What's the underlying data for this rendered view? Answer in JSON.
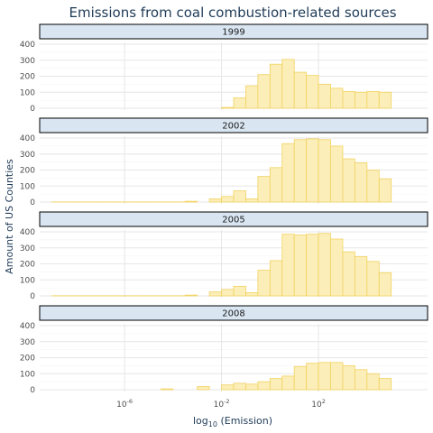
{
  "chart_data": {
    "type": "bar",
    "title": "Emissions from coal combustion-related sources",
    "xlabel": "log10 (Emission)",
    "ylabel": "Amount of US Counties",
    "x_scale": "log10",
    "x_ticks": [
      {
        "value": -6,
        "label_base": "10",
        "label_exp": "-6"
      },
      {
        "value": -2,
        "label_base": "10",
        "label_exp": "-2"
      },
      {
        "value": 2,
        "label_base": "10",
        "label_exp": "2"
      }
    ],
    "xlim": [
      -9.5,
      6.5
    ],
    "ylim": [
      0,
      400
    ],
    "y_ticks": [
      0,
      100,
      200,
      300,
      400
    ],
    "bin_edges_log10": [
      -9.0,
      -8.5,
      -8.0,
      -7.5,
      -7.0,
      -6.5,
      -6.0,
      -5.5,
      -5.0,
      -4.5,
      -4.0,
      -3.5,
      -3.0,
      -2.5,
      -2.0,
      -1.5,
      -1.0,
      -0.5,
      0.0,
      0.5,
      1.0,
      1.5,
      2.0,
      2.5,
      3.0,
      3.5,
      4.0,
      4.5,
      5.0
    ],
    "fill_color": "#fbeeb8",
    "stroke_color": "#f2d260",
    "panel_grid_color": "#e6e6e6",
    "strip_fill": "#d9e6f2",
    "panels": [
      {
        "label": "1999",
        "counts": [
          0,
          0,
          0,
          0,
          0,
          0,
          0,
          0,
          0,
          0,
          0,
          0,
          0,
          0,
          5,
          65,
          140,
          210,
          275,
          305,
          225,
          205,
          150,
          125,
          105,
          100,
          105,
          100,
          30
        ]
      },
      {
        "label": "2002",
        "counts": [
          1,
          1,
          1,
          1,
          1,
          1,
          1,
          1,
          1,
          1,
          1,
          5,
          0,
          20,
          35,
          70,
          20,
          160,
          215,
          365,
          390,
          395,
          390,
          350,
          270,
          245,
          200,
          145,
          100
        ]
      },
      {
        "label": "2005",
        "counts": [
          1,
          1,
          1,
          1,
          1,
          1,
          1,
          1,
          1,
          1,
          1,
          5,
          0,
          25,
          40,
          60,
          20,
          160,
          220,
          385,
          380,
          385,
          390,
          355,
          275,
          245,
          215,
          145,
          100
        ]
      },
      {
        "label": "2008",
        "counts": [
          0,
          0,
          0,
          0,
          0,
          0,
          0,
          0,
          0,
          5,
          0,
          0,
          20,
          0,
          30,
          40,
          35,
          50,
          70,
          85,
          145,
          165,
          170,
          170,
          150,
          125,
          100,
          70,
          45
        ]
      }
    ]
  }
}
